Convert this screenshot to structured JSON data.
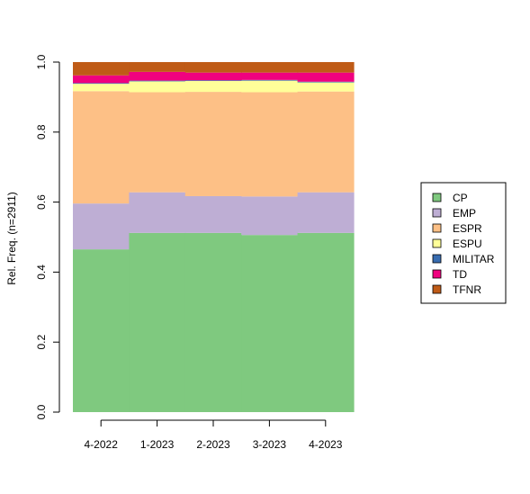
{
  "chart_data": {
    "type": "bar",
    "stacked": true,
    "categories": [
      "4-2022",
      "1-2023",
      "2-2023",
      "3-2023",
      "4-2023"
    ],
    "ylabel": "Rel. Freq. (n=2911)",
    "ylim": [
      0,
      1
    ],
    "yticks": [
      "0.0",
      "0.2",
      "0.4",
      "0.6",
      "0.8",
      "1.0"
    ],
    "grid": false,
    "legend_position": "right",
    "series": [
      {
        "name": "CP",
        "color": "#7fc97f",
        "values": [
          0.465,
          0.512,
          0.512,
          0.506,
          0.512
        ]
      },
      {
        "name": "EMP",
        "color": "#beaed4",
        "values": [
          0.131,
          0.116,
          0.105,
          0.11,
          0.116
        ]
      },
      {
        "name": "ESPR",
        "color": "#fdc086",
        "values": [
          0.321,
          0.286,
          0.298,
          0.298,
          0.288
        ]
      },
      {
        "name": "ESPU",
        "color": "#ffff99",
        "values": [
          0.021,
          0.031,
          0.031,
          0.033,
          0.026
        ]
      },
      {
        "name": "MILITAR",
        "color": "#386cb0",
        "values": [
          0.002,
          0.002,
          0.002,
          0.002,
          0.002
        ]
      },
      {
        "name": "TD",
        "color": "#f0027f",
        "values": [
          0.022,
          0.025,
          0.022,
          0.021,
          0.026
        ]
      },
      {
        "name": "TFNR",
        "color": "#bf5b17",
        "values": [
          0.038,
          0.028,
          0.03,
          0.03,
          0.03
        ]
      }
    ]
  }
}
